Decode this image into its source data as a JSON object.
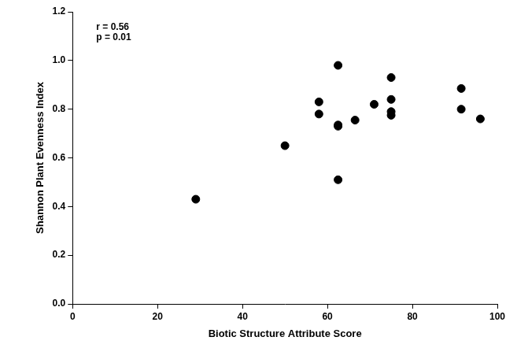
{
  "chart_data": {
    "type": "scatter",
    "x_label": "Biotic Structure Attribute Score",
    "y_label": "Shannon Plant Evenness Index",
    "annotations": [
      "r = 0.56",
      "p = 0.01"
    ],
    "x": [
      29,
      50,
      58,
      58,
      62.5,
      62.5,
      62.5,
      62.5,
      66.5,
      71,
      75,
      75,
      75,
      75,
      91.5,
      91.5,
      96
    ],
    "values": [
      0.43,
      0.65,
      0.83,
      0.78,
      0.98,
      0.735,
      0.73,
      0.51,
      0.755,
      0.82,
      0.93,
      0.84,
      0.79,
      0.775,
      0.885,
      0.8,
      0.76
    ],
    "color": "#000000",
    "marker": "circle",
    "xlim": [
      0,
      100
    ],
    "xticks": [
      0,
      20,
      40,
      60,
      80,
      100
    ],
    "ylim": [
      0,
      1.2
    ],
    "yticks": [
      {
        "value": 0,
        "label": "0.0"
      },
      0.2,
      0.4,
      0.6,
      0.8,
      {
        "value": 1,
        "label": "1.0"
      },
      1.2
    ],
    "grid": false
  }
}
